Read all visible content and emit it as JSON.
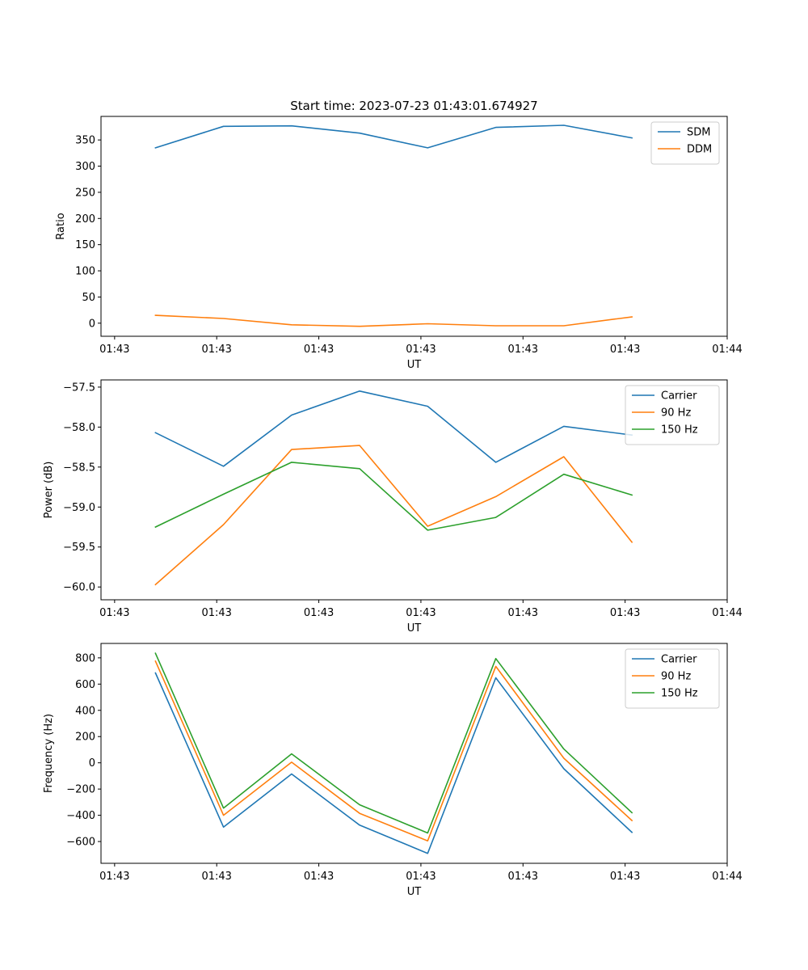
{
  "chart_data": [
    {
      "type": "line",
      "title": "Start time: 2023-07-23 01:43:01.674927",
      "xlabel": "UT",
      "ylabel": "Ratio",
      "x": [
        1,
        2,
        3,
        4,
        5,
        6,
        7,
        8
      ],
      "xlim": [
        0.2,
        9.4
      ],
      "xticks": [
        0.4,
        1.9,
        3.4,
        4.9,
        6.4,
        7.9,
        9.4
      ],
      "xtick_labels": [
        "01:43",
        "01:43",
        "01:43",
        "01:43",
        "01:43",
        "01:43",
        "01:44"
      ],
      "ylim": [
        -25,
        395
      ],
      "yticks": [
        0,
        50,
        100,
        150,
        200,
        250,
        300,
        350
      ],
      "ytick_labels": [
        "0",
        "50",
        "100",
        "150",
        "200",
        "250",
        "300",
        "350"
      ],
      "legend": "top-right",
      "series": [
        {
          "name": "SDM",
          "color": "#1f77b4",
          "values": [
            335,
            376,
            377,
            363,
            335,
            374,
            378,
            354
          ]
        },
        {
          "name": "DDM",
          "color": "#ff7f0e",
          "values": [
            15,
            9,
            -3,
            -6,
            -1,
            -5,
            -5,
            12
          ]
        }
      ]
    },
    {
      "type": "line",
      "title": "",
      "xlabel": "UT",
      "ylabel": "Power (dB)",
      "x": [
        1,
        2,
        3,
        4,
        5,
        6,
        7,
        8
      ],
      "xlim": [
        0.2,
        9.4
      ],
      "xticks": [
        0.4,
        1.9,
        3.4,
        4.9,
        6.4,
        7.9,
        9.4
      ],
      "xtick_labels": [
        "01:43",
        "01:43",
        "01:43",
        "01:43",
        "01:43",
        "01:43",
        "01:44"
      ],
      "ylim": [
        -60.16,
        -57.41
      ],
      "yticks": [
        -60.0,
        -59.5,
        -59.0,
        -58.5,
        -58.0,
        -57.5
      ],
      "ytick_labels": [
        "−60.0",
        "−59.5",
        "−59.0",
        "−58.5",
        "−58.0",
        "−57.5"
      ],
      "legend": "top-right",
      "series": [
        {
          "name": "Carrier",
          "color": "#1f77b4",
          "values": [
            -58.07,
            -58.49,
            -57.85,
            -57.55,
            -57.74,
            -58.44,
            -57.99,
            -58.1
          ]
        },
        {
          "name": "90 Hz",
          "color": "#ff7f0e",
          "values": [
            -59.97,
            -59.22,
            -58.28,
            -58.23,
            -59.24,
            -58.87,
            -58.37,
            -59.44
          ]
        },
        {
          "name": "150 Hz",
          "color": "#2ca02c",
          "values": [
            -59.25,
            -58.84,
            -58.44,
            -58.52,
            -59.29,
            -59.13,
            -58.59,
            -58.85
          ]
        }
      ]
    },
    {
      "type": "line",
      "title": "",
      "xlabel": "UT",
      "ylabel": "Frequency (Hz)",
      "x": [
        1,
        2,
        3,
        4,
        5,
        6,
        7,
        8
      ],
      "xlim": [
        0.2,
        9.4
      ],
      "xticks": [
        0.4,
        1.9,
        3.4,
        4.9,
        6.4,
        7.9,
        9.4
      ],
      "xtick_labels": [
        "01:43",
        "01:43",
        "01:43",
        "01:43",
        "01:43",
        "01:43",
        "01:44"
      ],
      "ylim": [
        -766,
        910
      ],
      "yticks": [
        -600,
        -400,
        -200,
        0,
        200,
        400,
        600,
        800
      ],
      "ytick_labels": [
        "−600",
        "−400",
        "−200",
        "0",
        "200",
        "400",
        "600",
        "800"
      ],
      "legend": "top-right",
      "series": [
        {
          "name": "Carrier",
          "color": "#1f77b4",
          "values": [
            685,
            -490,
            -85,
            -475,
            -690,
            648,
            -45,
            -530
          ]
        },
        {
          "name": "90 Hz",
          "color": "#ff7f0e",
          "values": [
            775,
            -400,
            5,
            -385,
            -595,
            735,
            35,
            -440
          ]
        },
        {
          "name": "150 Hz",
          "color": "#2ca02c",
          "values": [
            835,
            -345,
            68,
            -320,
            -535,
            795,
            105,
            -380
          ]
        }
      ]
    }
  ]
}
